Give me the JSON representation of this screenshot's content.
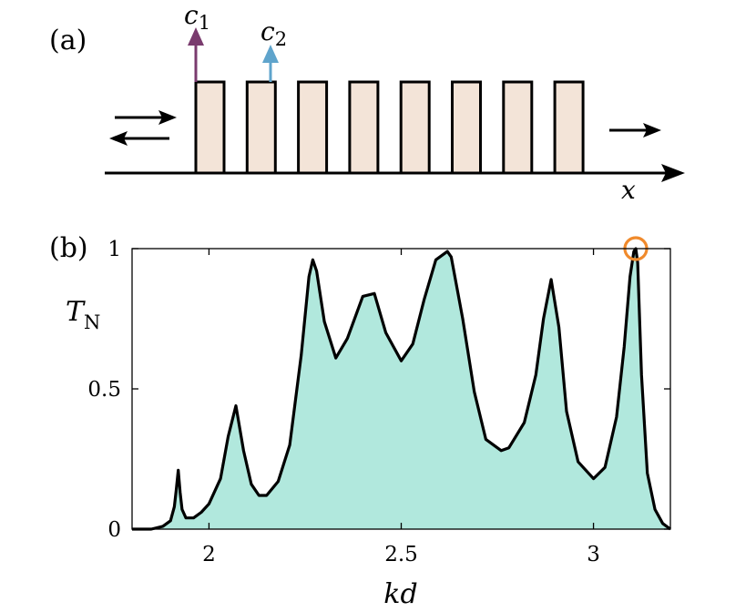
{
  "panel_a": {
    "label": "(a)",
    "arrow_labels": {
      "c1": {
        "main": "c",
        "sub": "1",
        "color": "#7a3b6e"
      },
      "c2": {
        "main": "c",
        "sub": "2",
        "color": "#5fa4cc"
      }
    },
    "axis_label": "x",
    "block_count": 8,
    "block_fill": "#f3e4d8"
  },
  "panel_b": {
    "label": "(b)"
  },
  "chart_data": {
    "type": "area",
    "xlabel": {
      "main": "kd",
      "sub": ""
    },
    "ylabel": {
      "main": "T",
      "sub": "N"
    },
    "xlim": [
      1.8,
      3.2
    ],
    "ylim": [
      0,
      1
    ],
    "xticks": [
      "2",
      "2.5",
      "3"
    ],
    "yticks": [
      "0",
      "0.5",
      "1"
    ],
    "fill_color": "#b1e8dd",
    "line_color": "#000000",
    "marker": {
      "x": 3.11,
      "y": 1.0,
      "color": "#f08a2c",
      "shape": "circle"
    },
    "series": [
      {
        "x": [
          1.8,
          1.85,
          1.88,
          1.9,
          1.91,
          1.915,
          1.92,
          1.925,
          1.93,
          1.94,
          1.96,
          1.98,
          2.0,
          2.03,
          2.05,
          2.07,
          2.09,
          2.11,
          2.13,
          2.15,
          2.18,
          2.21,
          2.24,
          2.26,
          2.27,
          2.28,
          2.3,
          2.33,
          2.36,
          2.4,
          2.43,
          2.46,
          2.5,
          2.53,
          2.56,
          2.59,
          2.62,
          2.63,
          2.66,
          2.69,
          2.72,
          2.76,
          2.78,
          2.82,
          2.85,
          2.87,
          2.89,
          2.91,
          2.93,
          2.96,
          3.0,
          3.03,
          3.06,
          3.08,
          3.095,
          3.105,
          3.11,
          3.115,
          3.125,
          3.14,
          3.16,
          3.18,
          3.2
        ],
        "y": [
          0.0,
          0.0,
          0.01,
          0.03,
          0.08,
          0.14,
          0.21,
          0.13,
          0.07,
          0.04,
          0.04,
          0.06,
          0.09,
          0.18,
          0.33,
          0.44,
          0.28,
          0.16,
          0.12,
          0.12,
          0.17,
          0.3,
          0.62,
          0.9,
          0.96,
          0.92,
          0.74,
          0.61,
          0.68,
          0.83,
          0.84,
          0.7,
          0.6,
          0.66,
          0.82,
          0.96,
          0.99,
          0.97,
          0.75,
          0.49,
          0.32,
          0.28,
          0.29,
          0.38,
          0.55,
          0.75,
          0.89,
          0.72,
          0.42,
          0.24,
          0.18,
          0.22,
          0.4,
          0.65,
          0.9,
          0.99,
          1.0,
          0.95,
          0.55,
          0.2,
          0.07,
          0.02,
          0.0
        ]
      }
    ]
  }
}
